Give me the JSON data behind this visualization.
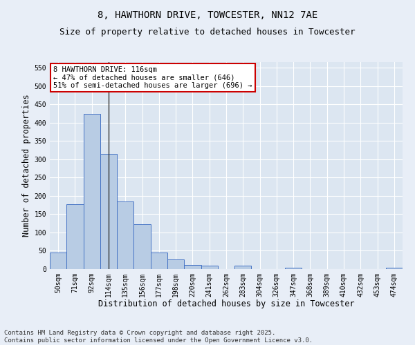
{
  "title": "8, HAWTHORN DRIVE, TOWCESTER, NN12 7AE",
  "subtitle": "Size of property relative to detached houses in Towcester",
  "xlabel": "Distribution of detached houses by size in Towcester",
  "ylabel": "Number of detached properties",
  "categories": [
    "50sqm",
    "71sqm",
    "92sqm",
    "114sqm",
    "135sqm",
    "156sqm",
    "177sqm",
    "198sqm",
    "220sqm",
    "241sqm",
    "262sqm",
    "283sqm",
    "304sqm",
    "326sqm",
    "347sqm",
    "368sqm",
    "389sqm",
    "410sqm",
    "432sqm",
    "453sqm",
    "474sqm"
  ],
  "values": [
    46,
    177,
    424,
    315,
    185,
    122,
    46,
    26,
    11,
    10,
    0,
    9,
    0,
    0,
    4,
    0,
    0,
    0,
    0,
    0,
    4
  ],
  "bar_color": "#b8cce4",
  "bar_edge_color": "#4472c4",
  "marker_index": 3,
  "vline_color": "#333333",
  "annotation_text": "8 HAWTHORN DRIVE: 116sqm\n← 47% of detached houses are smaller (646)\n51% of semi-detached houses are larger (696) →",
  "annotation_box_color": "#ffffff",
  "annotation_box_edge_color": "#cc0000",
  "ylim": [
    0,
    565
  ],
  "yticks": [
    0,
    50,
    100,
    150,
    200,
    250,
    300,
    350,
    400,
    450,
    500,
    550
  ],
  "background_color": "#e8eef7",
  "plot_bg_color": "#dce6f1",
  "grid_color": "#ffffff",
  "footer_line1": "Contains HM Land Registry data © Crown copyright and database right 2025.",
  "footer_line2": "Contains public sector information licensed under the Open Government Licence v3.0.",
  "title_fontsize": 10,
  "subtitle_fontsize": 9,
  "xlabel_fontsize": 8.5,
  "ylabel_fontsize": 8.5,
  "tick_fontsize": 7,
  "annotation_fontsize": 7.5,
  "footer_fontsize": 6.5
}
